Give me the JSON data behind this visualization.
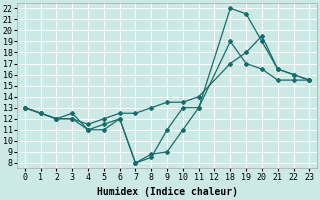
{
  "line1_x": [
    0,
    1,
    2,
    3,
    4,
    5,
    6,
    7,
    8,
    9,
    10,
    11,
    18,
    19,
    20,
    21,
    22,
    23
  ],
  "line1_y": [
    13,
    12.5,
    12,
    12.5,
    11,
    11,
    12,
    8,
    8.5,
    11,
    13,
    13,
    22,
    21.5,
    19,
    16.5,
    16,
    15.5
  ],
  "line2_x": [
    0,
    1,
    2,
    3,
    4,
    5,
    6,
    7,
    8,
    9,
    10,
    11,
    18,
    19,
    20,
    21,
    22,
    23
  ],
  "line2_y": [
    13,
    12.5,
    12,
    12,
    11,
    11.5,
    12,
    8,
    8.8,
    9,
    11,
    13,
    19,
    17,
    16.5,
    15.5,
    15.5,
    15.5
  ],
  "line3_x": [
    0,
    1,
    2,
    3,
    4,
    5,
    6,
    7,
    8,
    9,
    10,
    11,
    18,
    19,
    20,
    21,
    22,
    23
  ],
  "line3_y": [
    13,
    12.5,
    12,
    12,
    11.5,
    12,
    12.5,
    12.5,
    13,
    13.5,
    13.5,
    14,
    17,
    18,
    19.5,
    16.5,
    16,
    15.5
  ],
  "bg_color": "#cce9e5",
  "line_color": "#1a6b6b",
  "grid_color": "#ffffff",
  "xlabel": "Humidex (Indice chaleur)",
  "xtick_positions": [
    0,
    1,
    2,
    3,
    4,
    5,
    6,
    7,
    8,
    9,
    10,
    11,
    12,
    18,
    19,
    20,
    21,
    22,
    23
  ],
  "xtick_labels": [
    "0",
    "1",
    "2",
    "3",
    "4",
    "5",
    "6",
    "7",
    "8",
    "9",
    "10",
    "11",
    "12",
    "18",
    "19",
    "20",
    "21",
    "22",
    "23"
  ],
  "yticks": [
    8,
    9,
    10,
    11,
    12,
    13,
    14,
    15,
    16,
    17,
    18,
    19,
    20,
    21,
    22
  ],
  "xlabel_fontsize": 7,
  "tick_fontsize": 6,
  "figwidth": 3.2,
  "figheight": 2.0,
  "dpi": 100
}
